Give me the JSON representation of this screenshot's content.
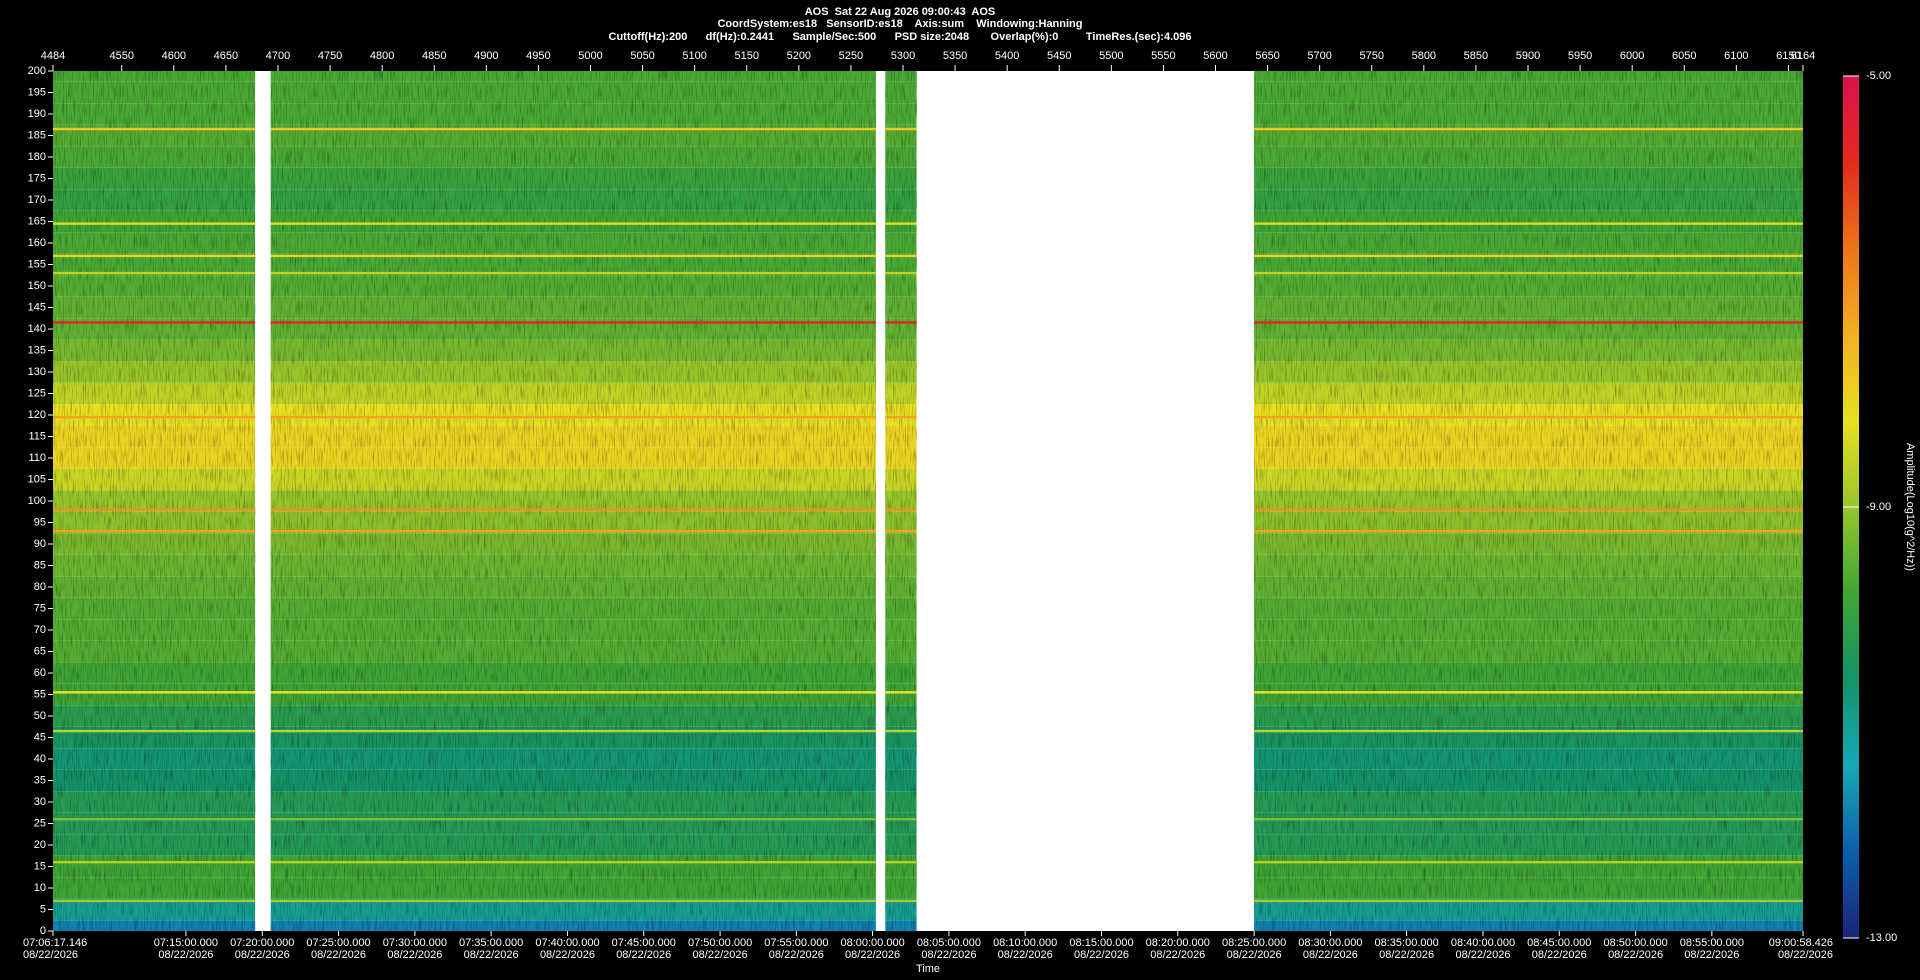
{
  "chart_data": {
    "type": "spectrogram",
    "title": "AOS  Sat 22 Aug 2026 09:00:43  AOS",
    "subtitle": "CoordSystem:es18   SensorID:es18    Axis:sum    Windowing:Hanning",
    "subtitle2": "Cuttoff(Hz):200      df(Hz):0.2441      Sample/Sec:500      PSD size:2048       Overlap(%):0         TimeRes.(sec):4.096",
    "xlabel": "Time",
    "colorbar_label": "Amplitude(Log10(g^2/Hz))",
    "xlim": [
      4484,
      6164
    ],
    "xticks": [
      4484,
      4550,
      4600,
      4650,
      4700,
      4750,
      4800,
      4850,
      4900,
      4950,
      5000,
      5050,
      5100,
      5150,
      5200,
      5250,
      5300,
      5350,
      5400,
      5450,
      5500,
      5550,
      5600,
      5650,
      5700,
      5750,
      5800,
      5850,
      5900,
      5950,
      6000,
      6050,
      6100,
      6150,
      6164
    ],
    "x2ticks": [
      {
        "value": 4484,
        "label": "07:06:17.146",
        "date": "08/22/2026"
      },
      {
        "value": 4611.6,
        "label": "07:15:00.000",
        "date": "08/22/2026"
      },
      {
        "value": 4684.9,
        "label": "07:20:00.000",
        "date": "08/22/2026"
      },
      {
        "value": 4758.1,
        "label": "07:25:00.000",
        "date": "08/22/2026"
      },
      {
        "value": 4831.4,
        "label": "07:30:00.000",
        "date": "08/22/2026"
      },
      {
        "value": 4904.6,
        "label": "07:35:00.000",
        "date": "08/22/2026"
      },
      {
        "value": 4977.9,
        "label": "07:40:00.000",
        "date": "08/22/2026"
      },
      {
        "value": 5051.1,
        "label": "07:45:00.000",
        "date": "08/22/2026"
      },
      {
        "value": 5124.4,
        "label": "07:50:00.000",
        "date": "08/22/2026"
      },
      {
        "value": 5197.6,
        "label": "07:55:00.000",
        "date": "08/22/2026"
      },
      {
        "value": 5270.8,
        "label": "08:00:00.000",
        "date": "08/22/2026"
      },
      {
        "value": 5344.1,
        "label": "08:05:00.000",
        "date": "08/22/2026"
      },
      {
        "value": 5417.3,
        "label": "08:10:00.000",
        "date": "08/22/2026"
      },
      {
        "value": 5490.6,
        "label": "08:15:00.000",
        "date": "08/22/2026"
      },
      {
        "value": 5563.8,
        "label": "08:20:00.000",
        "date": "08/22/2026"
      },
      {
        "value": 5637.1,
        "label": "08:25:00.000",
        "date": "08/22/2026"
      },
      {
        "value": 5710.3,
        "label": "08:30:00.000",
        "date": "08/22/2026"
      },
      {
        "value": 5783.5,
        "label": "08:35:00.000",
        "date": "08/22/2026"
      },
      {
        "value": 5856.8,
        "label": "08:40:00.000",
        "date": "08/22/2026"
      },
      {
        "value": 5930.0,
        "label": "08:45:00.000",
        "date": "08/22/2026"
      },
      {
        "value": 6003.3,
        "label": "08:50:00.000",
        "date": "08/22/2026"
      },
      {
        "value": 6076.5,
        "label": "08:55:00.000",
        "date": "08/22/2026"
      },
      {
        "value": 6164,
        "label": "09:00:58.426",
        "date": "08/22/2026"
      }
    ],
    "ylim": [
      0,
      200
    ],
    "yticks": [
      0,
      5,
      10,
      15,
      20,
      25,
      30,
      35,
      40,
      45,
      50,
      55,
      60,
      65,
      70,
      75,
      80,
      85,
      90,
      95,
      100,
      105,
      110,
      115,
      120,
      125,
      130,
      135,
      140,
      145,
      150,
      155,
      160,
      165,
      170,
      175,
      180,
      185,
      190,
      195,
      200
    ],
    "segments": [
      [
        4484,
        4678
      ],
      [
        4693,
        5274
      ],
      [
        5283,
        5313
      ],
      [
        5637,
        6164
      ]
    ],
    "freqs": [
      0,
      5,
      10,
      15,
      20,
      25,
      30,
      35,
      40,
      45,
      50,
      55,
      60,
      65,
      70,
      75,
      80,
      85,
      90,
      95,
      100,
      105,
      110,
      115,
      120,
      125,
      130,
      135,
      140,
      145,
      150,
      155,
      160,
      165,
      170,
      175,
      180,
      185,
      190,
      195,
      200
    ],
    "amplitude": [
      -11.8,
      -11.0,
      -9.8,
      -9.8,
      -10.3,
      -10.3,
      -10.3,
      -10.6,
      -10.7,
      -10.5,
      -10.2,
      -9.8,
      -9.8,
      -9.6,
      -9.6,
      -9.6,
      -9.5,
      -9.4,
      -9.3,
      -9.1,
      -9.0,
      -8.5,
      -8.0,
      -8.0,
      -8.2,
      -8.6,
      -9.0,
      -9.3,
      -9.5,
      -9.5,
      -9.6,
      -9.7,
      -9.7,
      -9.8,
      -10.0,
      -9.9,
      -9.7,
      -9.6,
      -9.7,
      -9.7,
      -9.7
    ],
    "line_freqs": [
      141.5,
      119.5,
      98,
      93,
      186.5,
      157,
      164.5,
      153,
      55.5,
      46.5,
      26,
      16,
      7
    ],
    "line_amplitude": [
      -5.6,
      -7.2,
      -7.0,
      -7.2,
      -7.8,
      -8.0,
      -8.3,
      -8.6,
      -8.2,
      -8.6,
      -9.2,
      -8.7,
      -8.8
    ],
    "clim": [
      -13,
      -5
    ],
    "cticks": [
      {
        "value": -5,
        "label": "-5.00"
      },
      {
        "value": -9,
        "label": "-9.00"
      },
      {
        "value": -13,
        "label": "-13.00"
      }
    ],
    "colormap": [
      "#1a2478",
      "#0d5fa8",
      "#16a8b8",
      "#14936a",
      "#3fa535",
      "#98c52a",
      "#e8e020",
      "#f4b022",
      "#ec7418",
      "#e22a1c",
      "#dc1050"
    ]
  }
}
